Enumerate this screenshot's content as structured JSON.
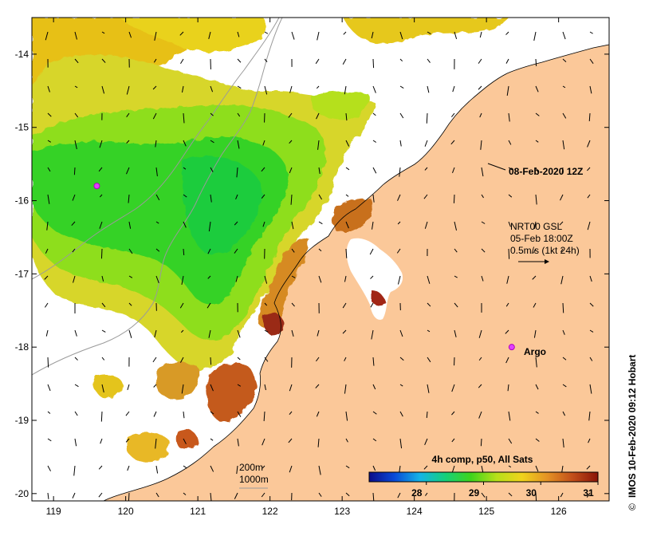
{
  "map": {
    "type": "sst_composite_map",
    "x_ticks": [
      "119",
      "120",
      "121",
      "122",
      "123",
      "124",
      "125",
      "126"
    ],
    "y_ticks": [
      "-14",
      "-15",
      "-16",
      "-17",
      "-18",
      "-19",
      "-20"
    ],
    "x_range": [
      118.7,
      126.7
    ],
    "y_range": [
      -20.1,
      -13.5
    ],
    "land_color": "#fbc899",
    "sst_colors": {
      "warm": "#9b3515",
      "mid": "#e7c018",
      "cool": "#1ed630"
    }
  },
  "annotations": {
    "date_label": "08-Feb-2020 12Z",
    "current_lines": [
      "NRT00 GSL",
      "05-Feb 18:00Z",
      "0.5m/s (1kt 24h)"
    ],
    "argo_label": "Argo",
    "depth_lines": [
      "200m",
      "1000m"
    ]
  },
  "colorbar": {
    "title": "4h comp, p50, All Sats",
    "tick_labels": [
      "28",
      "29",
      "30",
      "31"
    ],
    "range": [
      27.0,
      31.0
    ],
    "ticks": [
      28,
      29,
      30,
      31
    ],
    "stops": [
      "#0a0d8a",
      "#0a4bd8",
      "#14b4e6",
      "#16d07a",
      "#3ed41c",
      "#b6e01a",
      "#f0d41c",
      "#e49224",
      "#c24f1a",
      "#8a1408"
    ]
  },
  "credit": "IMOS 10-Feb-2020 09:12 Hobart",
  "markers": [
    {
      "name": "argo-float",
      "lon": 125.35,
      "lat": -18.0
    },
    {
      "name": "argo-float-west",
      "lon": 119.6,
      "lat": -15.8
    }
  ]
}
